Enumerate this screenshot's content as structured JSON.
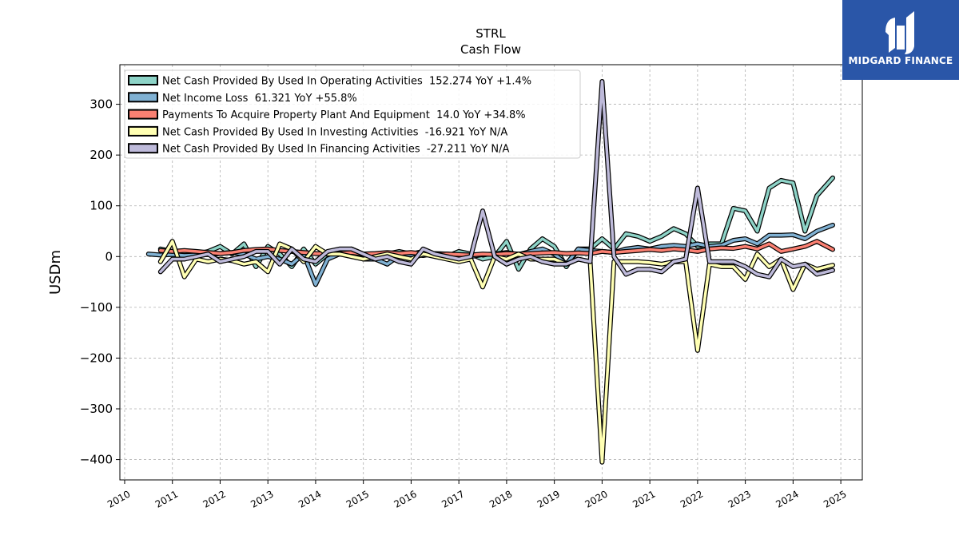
{
  "brand": {
    "name": "MIDGARD FINANCE",
    "color": "#2a56a8"
  },
  "chart_data": {
    "type": "line",
    "title": "STRL",
    "subtitle": "Cash Flow",
    "ylabel": "USDm",
    "xlabel": "",
    "xlim": [
      2009.9,
      2025.45
    ],
    "ylim": [
      -440,
      378
    ],
    "yticks": [
      300,
      200,
      100,
      0,
      -100,
      -200,
      -300,
      -400
    ],
    "xticks": [
      2010,
      2011,
      2012,
      2013,
      2014,
      2015,
      2016,
      2017,
      2018,
      2019,
      2020,
      2021,
      2022,
      2023,
      2024,
      2025
    ],
    "grid": true,
    "legend_position": "top-left",
    "series": [
      {
        "name": "Net Cash Provided By Used In Operating Activities  152.274 YoY +1.4%",
        "color": "#8dd3c7",
        "points": [
          [
            2010.75,
            15
          ],
          [
            2011.0,
            10
          ],
          [
            2011.25,
            -5
          ],
          [
            2011.5,
            5
          ],
          [
            2011.75,
            10
          ],
          [
            2012.0,
            20
          ],
          [
            2012.25,
            5
          ],
          [
            2012.5,
            25
          ],
          [
            2012.75,
            -20
          ],
          [
            2013.0,
            20
          ],
          [
            2013.25,
            5
          ],
          [
            2013.5,
            -20
          ],
          [
            2013.75,
            15
          ],
          [
            2014.0,
            -15
          ],
          [
            2014.25,
            5
          ],
          [
            2014.5,
            10
          ],
          [
            2014.75,
            15
          ],
          [
            2015.0,
            5
          ],
          [
            2015.25,
            0
          ],
          [
            2015.5,
            5
          ],
          [
            2015.75,
            10
          ],
          [
            2016.0,
            5
          ],
          [
            2016.25,
            10
          ],
          [
            2016.5,
            5
          ],
          [
            2016.75,
            0
          ],
          [
            2017.0,
            10
          ],
          [
            2017.25,
            5
          ],
          [
            2017.5,
            -5
          ],
          [
            2017.75,
            0
          ],
          [
            2018.0,
            30
          ],
          [
            2018.25,
            -25
          ],
          [
            2018.5,
            15
          ],
          [
            2018.75,
            35
          ],
          [
            2019.0,
            20
          ],
          [
            2019.25,
            -20
          ],
          [
            2019.5,
            15
          ],
          [
            2019.75,
            15
          ],
          [
            2020.0,
            35
          ],
          [
            2020.25,
            15
          ],
          [
            2020.5,
            45
          ],
          [
            2020.75,
            40
          ],
          [
            2021.0,
            30
          ],
          [
            2021.25,
            40
          ],
          [
            2021.5,
            55
          ],
          [
            2021.75,
            45
          ],
          [
            2022.0,
            20
          ],
          [
            2022.25,
            25
          ],
          [
            2022.5,
            25
          ],
          [
            2022.75,
            95
          ],
          [
            2023.0,
            90
          ],
          [
            2023.25,
            50
          ],
          [
            2023.5,
            135
          ],
          [
            2023.75,
            150
          ],
          [
            2024.0,
            145
          ],
          [
            2024.25,
            50
          ],
          [
            2024.5,
            120
          ],
          [
            2024.83,
            155
          ]
        ]
      },
      {
        "name": "Net Income Loss  61.321 YoY +55.8%",
        "color": "#80b1d3",
        "points": [
          [
            2010.5,
            5
          ],
          [
            2010.75,
            3
          ],
          [
            2011.0,
            4
          ],
          [
            2011.25,
            2
          ],
          [
            2011.5,
            3
          ],
          [
            2011.75,
            4
          ],
          [
            2012.0,
            6
          ],
          [
            2012.25,
            8
          ],
          [
            2012.5,
            5
          ],
          [
            2012.75,
            -5
          ],
          [
            2013.0,
            0
          ],
          [
            2013.25,
            -5
          ],
          [
            2013.5,
            -15
          ],
          [
            2013.75,
            5
          ],
          [
            2014.0,
            -55
          ],
          [
            2014.25,
            -5
          ],
          [
            2014.5,
            5
          ],
          [
            2014.75,
            5
          ],
          [
            2015.0,
            -5
          ],
          [
            2015.25,
            -5
          ],
          [
            2015.5,
            -15
          ],
          [
            2015.75,
            2
          ],
          [
            2016.0,
            4
          ],
          [
            2016.25,
            2
          ],
          [
            2016.5,
            6
          ],
          [
            2016.75,
            5
          ],
          [
            2017.0,
            3
          ],
          [
            2017.25,
            0
          ],
          [
            2017.5,
            4
          ],
          [
            2017.75,
            5
          ],
          [
            2018.0,
            8
          ],
          [
            2018.25,
            4
          ],
          [
            2018.5,
            10
          ],
          [
            2018.75,
            15
          ],
          [
            2019.0,
            5
          ],
          [
            2019.25,
            -15
          ],
          [
            2019.5,
            15
          ],
          [
            2019.75,
            12
          ],
          [
            2020.0,
            10
          ],
          [
            2020.25,
            8
          ],
          [
            2020.5,
            15
          ],
          [
            2020.75,
            18
          ],
          [
            2021.0,
            15
          ],
          [
            2021.25,
            20
          ],
          [
            2021.5,
            22
          ],
          [
            2021.75,
            20
          ],
          [
            2022.0,
            25
          ],
          [
            2022.25,
            20
          ],
          [
            2022.5,
            22
          ],
          [
            2022.75,
            32
          ],
          [
            2023.0,
            35
          ],
          [
            2023.25,
            25
          ],
          [
            2023.5,
            42
          ],
          [
            2023.75,
            42
          ],
          [
            2024.0,
            43
          ],
          [
            2024.25,
            35
          ],
          [
            2024.5,
            50
          ],
          [
            2024.83,
            62
          ]
        ]
      },
      {
        "name": "Payments To Acquire Property Plant And Equipment  14.0 YoY +34.8%",
        "color": "#fb8072",
        "points": [
          [
            2010.75,
            12
          ],
          [
            2011.0,
            10
          ],
          [
            2011.25,
            12
          ],
          [
            2011.5,
            10
          ],
          [
            2011.75,
            8
          ],
          [
            2012.0,
            6
          ],
          [
            2012.25,
            8
          ],
          [
            2012.5,
            12
          ],
          [
            2012.75,
            14
          ],
          [
            2013.0,
            15
          ],
          [
            2013.25,
            12
          ],
          [
            2013.5,
            10
          ],
          [
            2013.75,
            8
          ],
          [
            2014.0,
            6
          ],
          [
            2014.25,
            5
          ],
          [
            2014.5,
            6
          ],
          [
            2014.75,
            8
          ],
          [
            2015.0,
            5
          ],
          [
            2015.25,
            6
          ],
          [
            2015.5,
            8
          ],
          [
            2015.75,
            6
          ],
          [
            2016.0,
            8
          ],
          [
            2016.25,
            5
          ],
          [
            2016.5,
            4
          ],
          [
            2016.75,
            5
          ],
          [
            2017.0,
            4
          ],
          [
            2017.25,
            3
          ],
          [
            2017.5,
            5
          ],
          [
            2017.75,
            4
          ],
          [
            2018.0,
            6
          ],
          [
            2018.25,
            5
          ],
          [
            2018.5,
            6
          ],
          [
            2018.75,
            7
          ],
          [
            2019.0,
            8
          ],
          [
            2019.25,
            6
          ],
          [
            2019.5,
            7
          ],
          [
            2019.75,
            6
          ],
          [
            2020.0,
            10
          ],
          [
            2020.25,
            8
          ],
          [
            2020.5,
            10
          ],
          [
            2020.75,
            12
          ],
          [
            2021.0,
            14
          ],
          [
            2021.25,
            12
          ],
          [
            2021.5,
            15
          ],
          [
            2021.75,
            13
          ],
          [
            2022.0,
            10
          ],
          [
            2022.25,
            15
          ],
          [
            2022.5,
            17
          ],
          [
            2022.75,
            16
          ],
          [
            2023.0,
            20
          ],
          [
            2023.25,
            15
          ],
          [
            2023.5,
            25
          ],
          [
            2023.75,
            10
          ],
          [
            2024.0,
            15
          ],
          [
            2024.25,
            20
          ],
          [
            2024.5,
            30
          ],
          [
            2024.83,
            14
          ]
        ]
      },
      {
        "name": "Net Cash Provided By Used In Investing Activities  -16.921 YoY N/A",
        "color": "#ffffb3",
        "points": [
          [
            2010.75,
            -10
          ],
          [
            2011.0,
            30
          ],
          [
            2011.25,
            -40
          ],
          [
            2011.5,
            -5
          ],
          [
            2011.75,
            -10
          ],
          [
            2012.0,
            -5
          ],
          [
            2012.25,
            -8
          ],
          [
            2012.5,
            -15
          ],
          [
            2012.75,
            -10
          ],
          [
            2013.0,
            -30
          ],
          [
            2013.25,
            25
          ],
          [
            2013.5,
            15
          ],
          [
            2013.75,
            -10
          ],
          [
            2014.0,
            20
          ],
          [
            2014.25,
            5
          ],
          [
            2014.5,
            5
          ],
          [
            2014.75,
            0
          ],
          [
            2015.0,
            -5
          ],
          [
            2015.25,
            0
          ],
          [
            2015.5,
            5
          ],
          [
            2015.75,
            0
          ],
          [
            2016.0,
            -5
          ],
          [
            2016.25,
            5
          ],
          [
            2016.5,
            0
          ],
          [
            2016.75,
            -5
          ],
          [
            2017.0,
            -10
          ],
          [
            2017.25,
            -5
          ],
          [
            2017.5,
            -60
          ],
          [
            2017.75,
            0
          ],
          [
            2018.0,
            -5
          ],
          [
            2018.25,
            5
          ],
          [
            2018.5,
            -5
          ],
          [
            2018.75,
            -5
          ],
          [
            2019.0,
            -5
          ],
          [
            2019.25,
            -15
          ],
          [
            2019.5,
            -5
          ],
          [
            2019.75,
            -10
          ],
          [
            2020.0,
            -405
          ],
          [
            2020.25,
            -10
          ],
          [
            2020.5,
            -10
          ],
          [
            2020.75,
            -10
          ],
          [
            2021.0,
            -12
          ],
          [
            2021.25,
            -15
          ],
          [
            2021.5,
            -10
          ],
          [
            2021.75,
            -10
          ],
          [
            2022.0,
            -185
          ],
          [
            2022.25,
            -15
          ],
          [
            2022.5,
            -20
          ],
          [
            2022.75,
            -20
          ],
          [
            2023.0,
            -45
          ],
          [
            2023.25,
            5
          ],
          [
            2023.5,
            -20
          ],
          [
            2023.75,
            -5
          ],
          [
            2024.0,
            -65
          ],
          [
            2024.25,
            -15
          ],
          [
            2024.5,
            -25
          ],
          [
            2024.83,
            -17
          ]
        ]
      },
      {
        "name": "Net Cash Provided By Used In Financing Activities  -27.211 YoY N/A",
        "color": "#bebada",
        "points": [
          [
            2010.75,
            -30
          ],
          [
            2011.0,
            -5
          ],
          [
            2011.25,
            -5
          ],
          [
            2011.5,
            0
          ],
          [
            2011.75,
            5
          ],
          [
            2012.0,
            -10
          ],
          [
            2012.25,
            -5
          ],
          [
            2012.5,
            0
          ],
          [
            2012.75,
            10
          ],
          [
            2013.0,
            10
          ],
          [
            2013.25,
            -15
          ],
          [
            2013.5,
            15
          ],
          [
            2013.75,
            -5
          ],
          [
            2014.0,
            -10
          ],
          [
            2014.25,
            10
          ],
          [
            2014.5,
            15
          ],
          [
            2014.75,
            15
          ],
          [
            2015.0,
            5
          ],
          [
            2015.25,
            -5
          ],
          [
            2015.5,
            0
          ],
          [
            2015.75,
            -10
          ],
          [
            2016.0,
            -15
          ],
          [
            2016.25,
            15
          ],
          [
            2016.5,
            5
          ],
          [
            2016.75,
            0
          ],
          [
            2017.0,
            -5
          ],
          [
            2017.25,
            0
          ],
          [
            2017.5,
            90
          ],
          [
            2017.75,
            0
          ],
          [
            2018.0,
            -15
          ],
          [
            2018.25,
            -5
          ],
          [
            2018.5,
            0
          ],
          [
            2018.75,
            -10
          ],
          [
            2019.0,
            -15
          ],
          [
            2019.25,
            -15
          ],
          [
            2019.5,
            -5
          ],
          [
            2019.75,
            -10
          ],
          [
            2020.0,
            345
          ],
          [
            2020.25,
            0
          ],
          [
            2020.5,
            -35
          ],
          [
            2020.75,
            -25
          ],
          [
            2021.0,
            -25
          ],
          [
            2021.25,
            -30
          ],
          [
            2021.5,
            -10
          ],
          [
            2021.75,
            -5
          ],
          [
            2022.0,
            135
          ],
          [
            2022.25,
            -10
          ],
          [
            2022.5,
            -10
          ],
          [
            2022.75,
            -10
          ],
          [
            2023.0,
            -20
          ],
          [
            2023.25,
            -35
          ],
          [
            2023.5,
            -40
          ],
          [
            2023.75,
            -5
          ],
          [
            2024.0,
            -20
          ],
          [
            2024.25,
            -15
          ],
          [
            2024.5,
            -35
          ],
          [
            2024.83,
            -27
          ]
        ]
      }
    ]
  }
}
